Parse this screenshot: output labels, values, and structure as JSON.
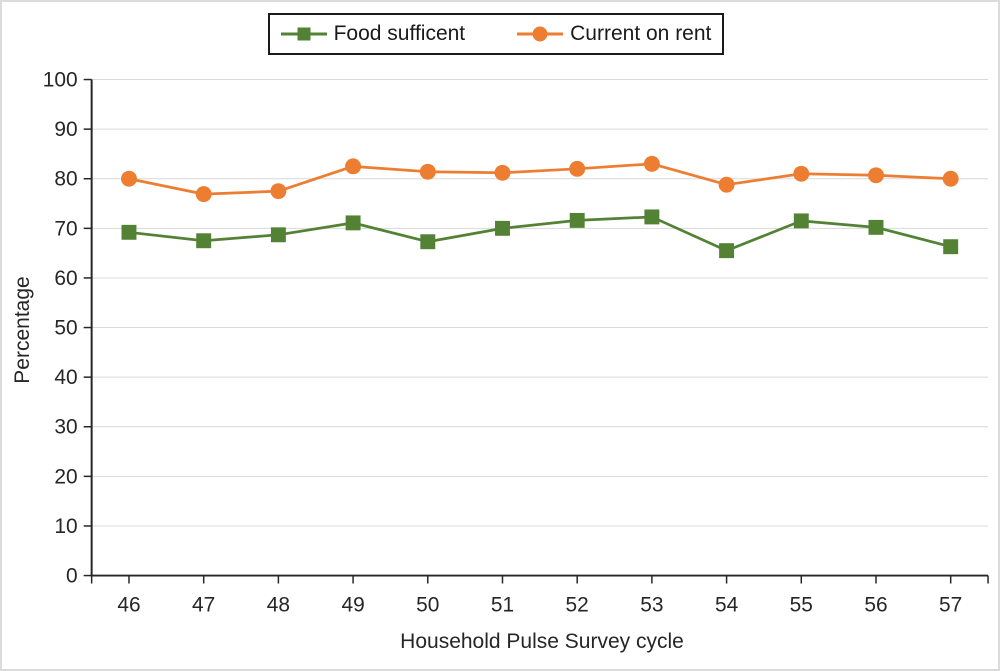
{
  "chart_data": {
    "type": "line",
    "title": "",
    "categories": [
      "46",
      "47",
      "48",
      "49",
      "50",
      "51",
      "52",
      "53",
      "54",
      "55",
      "56",
      "57"
    ],
    "series": [
      {
        "name": "Food sufficent",
        "marker": "square",
        "color": "#548235",
        "values": [
          69.2,
          67.5,
          68.7,
          71.1,
          67.3,
          70.0,
          71.6,
          72.3,
          65.5,
          71.5,
          70.2,
          66.3
        ]
      },
      {
        "name": "Current on rent",
        "marker": "circle",
        "color": "#ED7D31",
        "values": [
          80.0,
          76.9,
          77.5,
          82.5,
          81.4,
          81.2,
          82.0,
          83.0,
          78.8,
          81.0,
          80.7,
          80.0
        ]
      }
    ],
    "xlabel": "Household Pulse Survey cycle",
    "ylabel": "Percentage",
    "ylim": [
      0,
      100
    ],
    "yticks": [
      0,
      10,
      20,
      30,
      40,
      50,
      60,
      70,
      80,
      90,
      100
    ],
    "grid": true,
    "legend_position": "top",
    "gridline_color": "#D9D9D9",
    "axis_color": "#262626"
  }
}
